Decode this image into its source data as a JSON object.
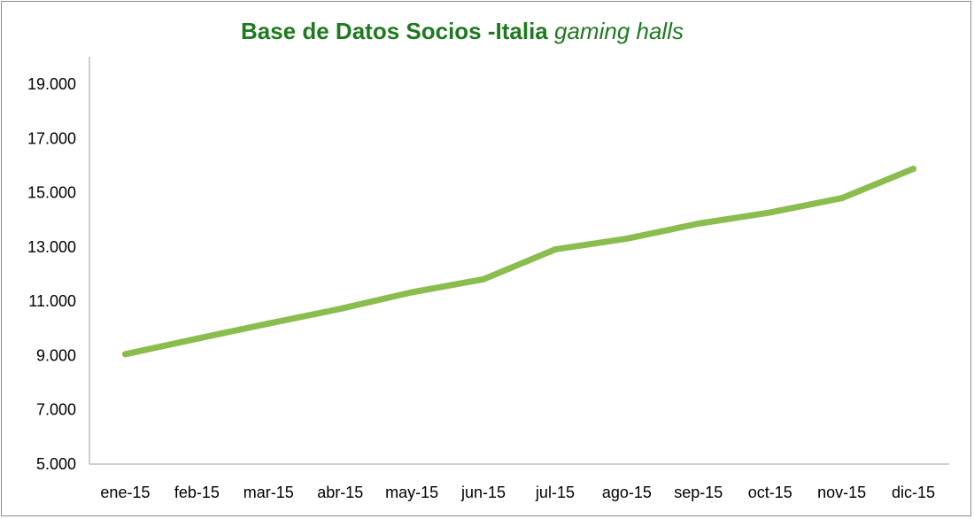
{
  "chart_data": {
    "type": "line",
    "title_main": "Base de Datos Socios -Italia",
    "title_emphasis": "gaming halls",
    "title_color": "#1e7a1e",
    "line_color": "#8bbd4e",
    "xlabel": "",
    "ylabel": "",
    "grid": false,
    "categories": [
      "ene-15",
      "feb-15",
      "mar-15",
      "abr-15",
      "may-15",
      "jun-15",
      "jul-15",
      "ago-15",
      "sep-15",
      "oct-15",
      "nov-15",
      "dic-15"
    ],
    "series": [
      {
        "values": [
          9050,
          9620,
          10180,
          10720,
          11330,
          11810,
          12910,
          13310,
          13860,
          14270,
          14800,
          15880
        ]
      }
    ],
    "ylim": [
      5000,
      20000
    ],
    "yticks": [
      5000,
      7000,
      9000,
      11000,
      13000,
      15000,
      17000,
      19000
    ],
    "ytick_labels": [
      "5.000",
      "7.000",
      "9.000",
      "11.000",
      "13.000",
      "15.000",
      "17.000",
      "19.000"
    ]
  }
}
